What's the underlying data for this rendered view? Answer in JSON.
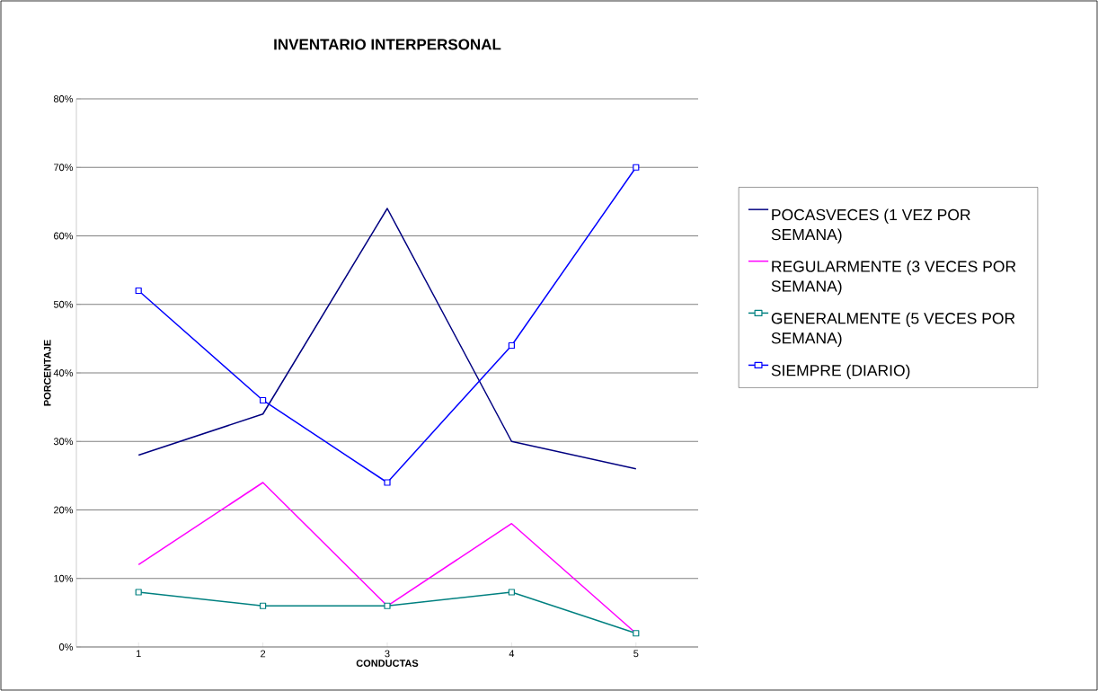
{
  "chart_data": {
    "type": "line",
    "title": "INVENTARIO INTERPERSONAL",
    "xlabel": "CONDUCTAS",
    "ylabel": "PORCENTAJE",
    "categories": [
      "1",
      "2",
      "3",
      "4",
      "5"
    ],
    "series": [
      {
        "name": "POCASVECES (1 VEZ POR SEMANA)",
        "color": "#000080",
        "marker": "none",
        "values": [
          28,
          34,
          64,
          30,
          26
        ]
      },
      {
        "name": "REGULARMENTE (3 VECES POR SEMANA)",
        "color": "#ff00ff",
        "marker": "none",
        "values": [
          12,
          24,
          6,
          18,
          2
        ]
      },
      {
        "name": "GENERALMENTE (5 VECES POR SEMANA)",
        "color": "#008080",
        "marker": "square",
        "values": [
          8,
          6,
          6,
          8,
          2
        ]
      },
      {
        "name": "SIEMPRE (DIARIO)",
        "color": "#0000ff",
        "marker": "square",
        "values": [
          52,
          36,
          24,
          44,
          70
        ]
      }
    ],
    "ylim": [
      0,
      80
    ],
    "yticks": [
      {
        "value": 0,
        "label": "0%"
      },
      {
        "value": 10,
        "label": "10%"
      },
      {
        "value": 20,
        "label": "20%"
      },
      {
        "value": 30,
        "label": "30%"
      },
      {
        "value": 40,
        "label": "40%"
      },
      {
        "value": 50,
        "label": "50%"
      },
      {
        "value": 60,
        "label": "60%"
      },
      {
        "value": 70,
        "label": "70%"
      },
      {
        "value": 80,
        "label": "80%"
      }
    ],
    "grid": "y",
    "legend": "right",
    "line_style": "solid"
  }
}
